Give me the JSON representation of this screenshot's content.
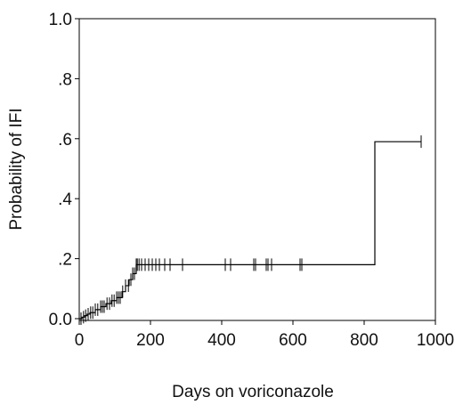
{
  "chart_data": {
    "type": "line",
    "step": true,
    "title": "",
    "xlabel": "Days on voriconazole",
    "ylabel": "Probability of IFI",
    "xlim": [
      0,
      1000
    ],
    "ylim": [
      0.0,
      1.0
    ],
    "x_ticks": [
      0,
      200,
      400,
      600,
      800,
      1000
    ],
    "x_tick_labels": [
      "0",
      "200",
      "400",
      "600",
      "800",
      "1000"
    ],
    "y_ticks": [
      0.0,
      0.2,
      0.4,
      0.6,
      0.8,
      1.0
    ],
    "y_tick_labels": [
      "0.0",
      ".2",
      ".4",
      ".6",
      ".8",
      "1.0"
    ],
    "grid": false,
    "legend": "none",
    "line_color": "#000000",
    "series": [
      {
        "name": "",
        "x": [
          0,
          8,
          15,
          22,
          30,
          45,
          60,
          75,
          90,
          105,
          120,
          130,
          140,
          150,
          160,
          830,
          960
        ],
        "y": [
          0.0,
          0.005,
          0.01,
          0.015,
          0.02,
          0.03,
          0.04,
          0.05,
          0.06,
          0.07,
          0.09,
          0.11,
          0.13,
          0.15,
          0.18,
          0.59,
          0.59
        ]
      }
    ],
    "censored_x": [
      5,
      12,
      18,
      25,
      32,
      38,
      45,
      52,
      60,
      65,
      70,
      78,
      85,
      92,
      98,
      105,
      110,
      115,
      122,
      130,
      138,
      145,
      150,
      155,
      160,
      163,
      168,
      175,
      185,
      195,
      205,
      215,
      225,
      240,
      255,
      290,
      410,
      425,
      490,
      495,
      525,
      530,
      540,
      620,
      625,
      960
    ]
  }
}
